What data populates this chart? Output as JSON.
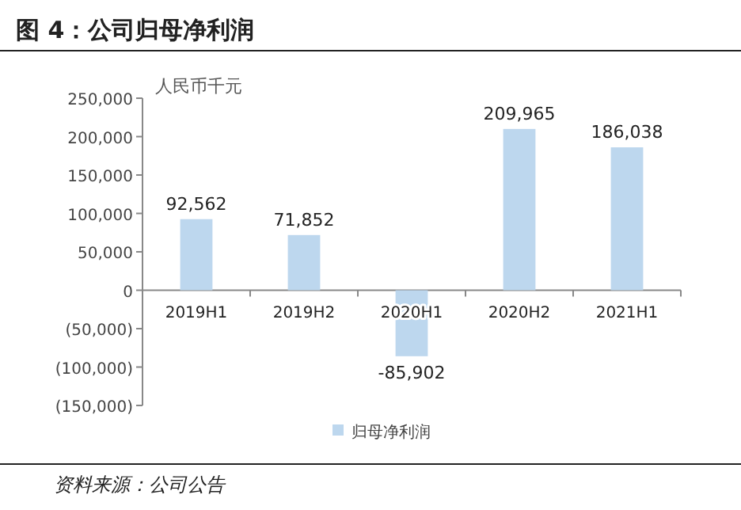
{
  "chart_data": {
    "type": "bar",
    "title": "图 4：公司归母净利润",
    "ylabel": "人民币千元",
    "categories": [
      "2019H1",
      "2019H2",
      "2020H1",
      "2020H2",
      "2021H1"
    ],
    "series": [
      {
        "name": "归母净利润",
        "color": "#bdd7ee",
        "values": [
          92562,
          71852,
          -85902,
          209965,
          186038
        ]
      }
    ],
    "value_labels": [
      "92,562",
      "71,852",
      "-85,902",
      "209,965",
      "186,038"
    ],
    "ylim": [
      -150000,
      250000
    ],
    "yticks": [
      {
        "value": -150000,
        "label": "(150,000)"
      },
      {
        "value": -100000,
        "label": "(100,000)"
      },
      {
        "value": -50000,
        "label": "(50,000)"
      },
      {
        "value": 0,
        "label": "0"
      },
      {
        "value": 50000,
        "label": "50,000"
      },
      {
        "value": 100000,
        "label": "100,000"
      },
      {
        "value": 150000,
        "label": "150,000"
      },
      {
        "value": 200000,
        "label": "200,000"
      },
      {
        "value": 250000,
        "label": "250,000"
      }
    ],
    "grid": false,
    "legend": "bottom",
    "annotations": [
      "资料来源：公司公告"
    ]
  }
}
